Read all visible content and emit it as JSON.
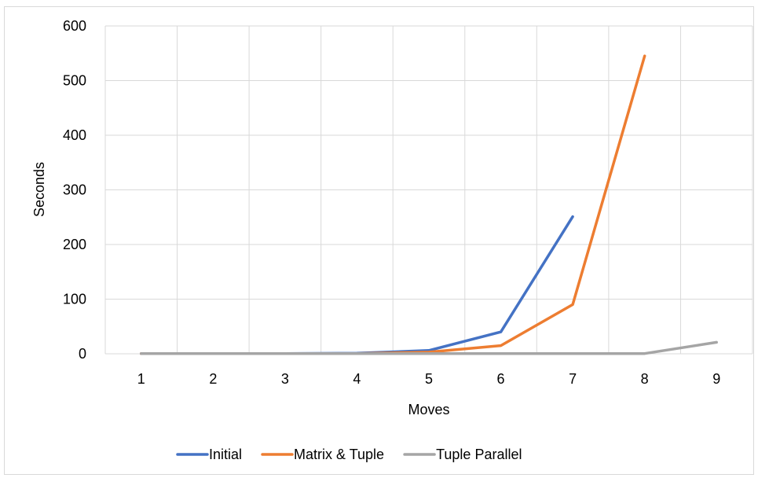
{
  "chart_data": {
    "type": "line",
    "title": "",
    "xlabel": "Moves",
    "ylabel": "Seconds",
    "x": [
      1,
      2,
      3,
      4,
      5,
      6,
      7,
      8,
      9
    ],
    "xticks": [
      "1",
      "2",
      "3",
      "4",
      "5",
      "6",
      "7",
      "8",
      "9"
    ],
    "ylim": [
      0,
      600
    ],
    "yticks": [
      0,
      100,
      200,
      300,
      400,
      500,
      600
    ],
    "grid": true,
    "legend": "bottom",
    "series": [
      {
        "name": "Initial",
        "color": "#4472C4",
        "values": [
          0.5,
          0.5,
          0.5,
          1,
          6,
          40,
          251,
          null,
          null
        ]
      },
      {
        "name": "Matrix & Tuple",
        "color": "#ED7D31",
        "values": [
          0.5,
          0.5,
          0.5,
          0.5,
          3,
          15,
          90,
          545,
          null
        ]
      },
      {
        "name": "Tuple Parallel",
        "color": "#A5A5A5",
        "values": [
          0.5,
          0.5,
          0.5,
          0.5,
          0.5,
          0.5,
          0.5,
          0.5,
          21
        ]
      }
    ]
  }
}
